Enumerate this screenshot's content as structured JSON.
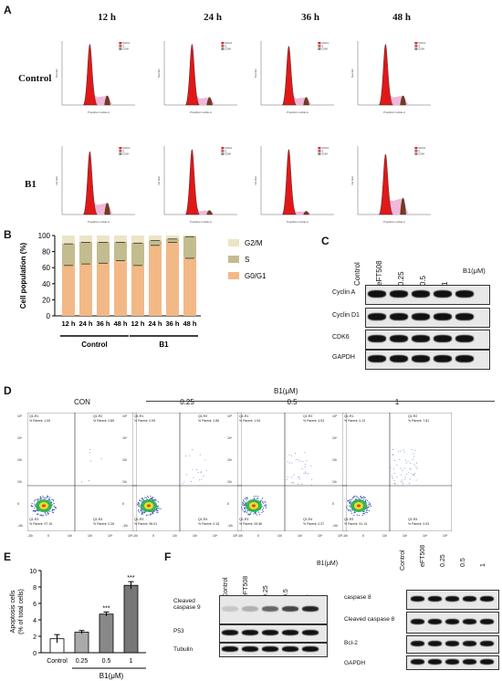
{
  "panels": {
    "A": "A",
    "B": "B",
    "C": "C",
    "D": "D",
    "E": "E",
    "F": "F"
  },
  "panelA": {
    "timepoints": [
      "12 h",
      "24 h",
      "36 h",
      "48 h"
    ],
    "rows": [
      "Control",
      "B1"
    ],
    "xaxis_label": "Propidium Iodide-A",
    "yaxis_label": "Number",
    "legend": [
      "G0/G1",
      "S",
      "G2/M"
    ]
  },
  "panelB": {
    "ylabel": "Cell population (%)",
    "legend": [
      "G2/M",
      "S",
      "G0/G1"
    ],
    "group_labels": [
      "Control",
      "B1"
    ],
    "colors": {
      "G0G1": "#f2b987",
      "S": "#c3bc8f",
      "G2M": "#ebe4c6"
    }
  },
  "panelC": {
    "lanes": [
      "Control",
      "eFT508",
      "0.25",
      "0.5",
      "1"
    ],
    "treatment_label": "B1(μM)",
    "proteins": [
      "Cyclin A",
      "Cyclin D1",
      "CDK6",
      "GAPDH"
    ]
  },
  "panelD": {
    "treatment_label": "B1(μM)",
    "conditions": [
      "CON",
      "0.25",
      "0.5",
      "1"
    ],
    "quadrants": [
      {
        "q1": "Q1-R1",
        "q1p": "% Parent: 1.05",
        "q2": "Q1-R2",
        "q2p": "% Parent: 0.85",
        "q3": "Q1-R3",
        "q3p": "% Parent: 97.15",
        "q4": "Q1-R4",
        "q4p": "% Parent: 0.26"
      },
      {
        "q1": "Q1-R1",
        "q1p": "% Parent: 0.99",
        "q2": "Q1-R2",
        "q2p": "% Parent: 2.86",
        "q3": "Q1-R3",
        "q3p": "% Parent: 96.01",
        "q4": "Q1-R4",
        "q4p": "% Parent: 0.15"
      },
      {
        "q1": "Q1-R1",
        "q1p": "% Parent: 1.54",
        "q2": "Q1-R2",
        "q2p": "% Parent: 4.53",
        "q3": "Q1-R3",
        "q3p": "% Parent: 93.56",
        "q4": "Q1-R4",
        "q4p": "% Parent: 0.37"
      },
      {
        "q1": "Q1-R1",
        "q1p": "% Parent: 0.13",
        "q2": "Q1-R2",
        "q2p": "% Parent: 7.81",
        "q3": "Q1-R3",
        "q3p": "% Parent: 91.13",
        "q4": "Q1-R4",
        "q4p": "% Parent: 0.93"
      }
    ],
    "ytick_labels": [
      "10⁵",
      "10⁴",
      "10³",
      "10²",
      "0",
      "-10²"
    ],
    "xtick_labels": [
      "-10²",
      "0",
      "10²",
      "10³",
      "10⁴",
      "10⁵"
    ]
  },
  "panelE": {
    "ylabel_line1": "Apoptosis cells",
    "ylabel_line2": "(% of total cells)",
    "xlabel": "B1(μM)",
    "significance": "***"
  },
  "panelF": {
    "lanes": [
      "Control",
      "eFT508",
      "0.25",
      "0.5",
      "1"
    ],
    "treatment_label": "B1(μM)",
    "left_proteins": [
      "Cleaved\ncaspase 9",
      "P53",
      "Tubulin"
    ],
    "right_proteins": [
      "caspase 8",
      "Cleaved caspase 8",
      "Bcl-2",
      "GAPDH"
    ]
  },
  "chart_data": [
    {
      "type": "bar",
      "stacked": true,
      "title": "",
      "ylabel": "Cell population (%)",
      "ylim": [
        0,
        100
      ],
      "yticks": [
        0,
        20,
        40,
        60,
        80,
        100
      ],
      "categories": [
        "12 h",
        "24 h",
        "36 h",
        "48 h",
        "12 h",
        "24 h",
        "36 h",
        "48 h"
      ],
      "groups": [
        {
          "name": "Control",
          "range": [
            0,
            3
          ]
        },
        {
          "name": "B1",
          "range": [
            4,
            7
          ]
        }
      ],
      "series": [
        {
          "name": "G0/G1",
          "values": [
            63,
            65,
            66,
            69,
            63,
            88,
            92,
            72
          ]
        },
        {
          "name": "S",
          "values": [
            27,
            27,
            26,
            23,
            28,
            6,
            4,
            27
          ]
        },
        {
          "name": "G2/M",
          "values": [
            10,
            8,
            8,
            8,
            9,
            6,
            4,
            1
          ]
        }
      ],
      "legend": "right"
    },
    {
      "type": "bar",
      "title": "",
      "ylabel": "Apoptosis cells (% of total cells)",
      "xlabel": "B1(μM)",
      "ylim": [
        0,
        10
      ],
      "yticks": [
        0,
        2,
        4,
        6,
        8,
        10
      ],
      "categories": [
        "Control",
        "0.25",
        "0.5",
        "1"
      ],
      "values": [
        1.7,
        2.5,
        4.7,
        8.2
      ],
      "errors": [
        0.5,
        0.2,
        0.25,
        0.45
      ],
      "annotations": [
        "",
        "",
        "***",
        "***"
      ]
    }
  ]
}
